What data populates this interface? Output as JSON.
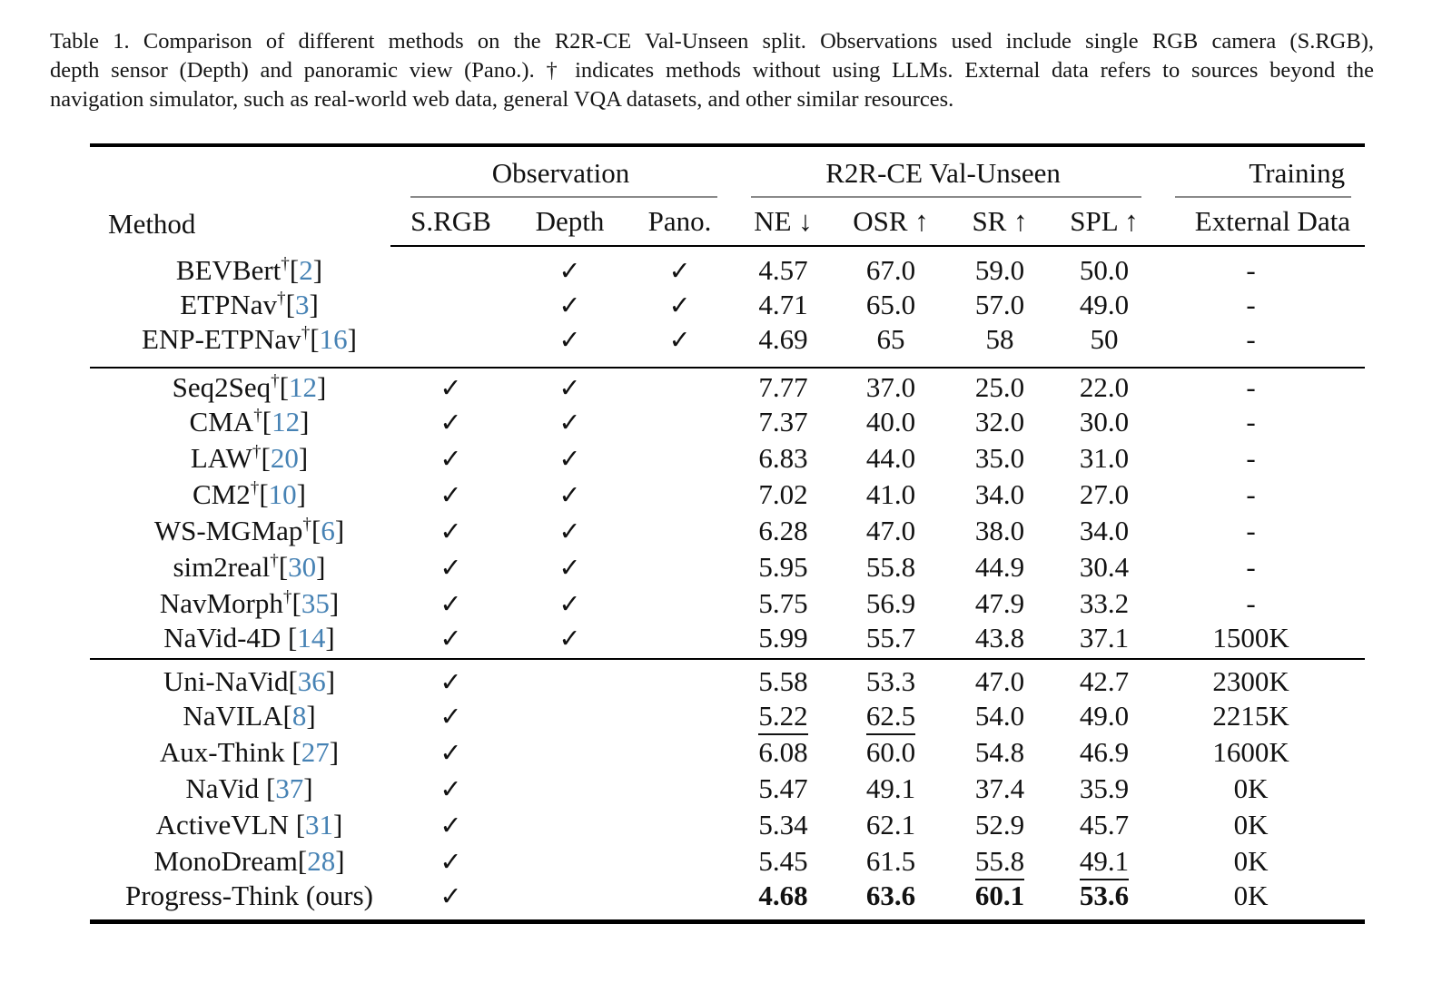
{
  "caption": {
    "lines": [
      "Table 1.  Comparison of different methods on the R2R-CE Val-Unseen split.  Observations used include single RGB camera (S.RGB),",
      "depth sensor (Depth) and panoramic view (Pano.). † indicates methods without using LLMs. External data refers to sources beyond the",
      "navigation simulator, such as real-world web data, general VQA datasets, and other similar resources."
    ]
  },
  "colors": {
    "citation_blue": "#4682b4",
    "text": "#121212",
    "rule": "#000000"
  },
  "glyphs": {
    "check": "✓",
    "dagger": "†",
    "open_bracket": "[",
    "close_bracket": "]"
  },
  "table": {
    "header": {
      "method": "Method",
      "groups": [
        {
          "label": "Observation",
          "span": 3
        },
        {
          "label": "R2R-CE Val-Unseen",
          "span": 4
        },
        {
          "label": "Training",
          "span": 1
        }
      ],
      "subs": [
        "S.RGB",
        "Depth",
        "Pano.",
        "NE ↓",
        "OSR ↑",
        "SR ↑",
        "SPL ↑",
        "External Data"
      ]
    },
    "groups": [
      {
        "rows": [
          {
            "method": "BEVBert",
            "dagger": true,
            "cite": "2",
            "space_before_cite": false,
            "srgb": false,
            "depth": true,
            "pano": true,
            "values": {
              "ne": "4.57",
              "osr": "67.0",
              "sr": "59.0",
              "spl": "50.0",
              "ext": "-"
            },
            "underline": [],
            "bold": []
          },
          {
            "method": "ETPNav",
            "dagger": true,
            "cite": "3",
            "space_before_cite": false,
            "srgb": false,
            "depth": true,
            "pano": true,
            "values": {
              "ne": "4.71",
              "osr": "65.0",
              "sr": "57.0",
              "spl": "49.0",
              "ext": "-"
            },
            "underline": [],
            "bold": []
          },
          {
            "method": "ENP-ETPNav",
            "dagger": true,
            "cite": "16",
            "space_before_cite": false,
            "srgb": false,
            "depth": true,
            "pano": true,
            "values": {
              "ne": "4.69",
              "osr": "65",
              "sr": "58",
              "spl": "50",
              "ext": "-"
            },
            "underline": [],
            "bold": []
          }
        ]
      },
      {
        "rows": [
          {
            "method": "Seq2Seq",
            "dagger": true,
            "cite": "12",
            "space_before_cite": false,
            "srgb": true,
            "depth": true,
            "pano": false,
            "values": {
              "ne": "7.77",
              "osr": "37.0",
              "sr": "25.0",
              "spl": "22.0",
              "ext": "-"
            },
            "underline": [],
            "bold": []
          },
          {
            "method": "CMA",
            "dagger": true,
            "cite": "12",
            "space_before_cite": false,
            "srgb": true,
            "depth": true,
            "pano": false,
            "values": {
              "ne": "7.37",
              "osr": "40.0",
              "sr": "32.0",
              "spl": "30.0",
              "ext": "-"
            },
            "underline": [],
            "bold": []
          },
          {
            "method": "LAW",
            "dagger": true,
            "cite": "20",
            "space_before_cite": false,
            "srgb": true,
            "depth": true,
            "pano": false,
            "values": {
              "ne": "6.83",
              "osr": "44.0",
              "sr": "35.0",
              "spl": "31.0",
              "ext": "-"
            },
            "underline": [],
            "bold": []
          },
          {
            "method": "CM2",
            "dagger": true,
            "cite": "10",
            "space_before_cite": false,
            "srgb": true,
            "depth": true,
            "pano": false,
            "values": {
              "ne": "7.02",
              "osr": "41.0",
              "sr": "34.0",
              "spl": "27.0",
              "ext": "-"
            },
            "underline": [],
            "bold": []
          },
          {
            "method": "WS-MGMap",
            "dagger": true,
            "cite": "6",
            "space_before_cite": false,
            "srgb": true,
            "depth": true,
            "pano": false,
            "values": {
              "ne": "6.28",
              "osr": "47.0",
              "sr": "38.0",
              "spl": "34.0",
              "ext": "-"
            },
            "underline": [],
            "bold": []
          },
          {
            "method": "sim2real",
            "dagger": true,
            "cite": "30",
            "space_before_cite": false,
            "srgb": true,
            "depth": true,
            "pano": false,
            "values": {
              "ne": "5.95",
              "osr": "55.8",
              "sr": "44.9",
              "spl": "30.4",
              "ext": "-"
            },
            "underline": [],
            "bold": []
          },
          {
            "method": "NavMorph",
            "dagger": true,
            "cite": "35",
            "space_before_cite": false,
            "srgb": true,
            "depth": true,
            "pano": false,
            "values": {
              "ne": "5.75",
              "osr": "56.9",
              "sr": "47.9",
              "spl": "33.2",
              "ext": "-"
            },
            "underline": [],
            "bold": []
          },
          {
            "method": "NaVid-4D",
            "dagger": false,
            "cite": "14",
            "space_before_cite": true,
            "srgb": true,
            "depth": true,
            "pano": false,
            "values": {
              "ne": "5.99",
              "osr": "55.7",
              "sr": "43.8",
              "spl": "37.1",
              "ext": "1500K"
            },
            "underline": [],
            "bold": []
          }
        ]
      },
      {
        "rows": [
          {
            "method": "Uni-NaVid",
            "dagger": false,
            "cite": "36",
            "space_before_cite": false,
            "srgb": true,
            "depth": false,
            "pano": false,
            "values": {
              "ne": "5.58",
              "osr": "53.3",
              "sr": "47.0",
              "spl": "42.7",
              "ext": "2300K"
            },
            "underline": [],
            "bold": []
          },
          {
            "method": "NaVILA",
            "dagger": false,
            "cite": "8",
            "space_before_cite": false,
            "srgb": true,
            "depth": false,
            "pano": false,
            "values": {
              "ne": "5.22",
              "osr": "62.5",
              "sr": "54.0",
              "spl": "49.0",
              "ext": "2215K"
            },
            "underline": [
              "ne",
              "osr"
            ],
            "bold": []
          },
          {
            "method": "Aux-Think",
            "dagger": false,
            "cite": "27",
            "space_before_cite": true,
            "srgb": true,
            "depth": false,
            "pano": false,
            "values": {
              "ne": "6.08",
              "osr": "60.0",
              "sr": "54.8",
              "spl": "46.9",
              "ext": "1600K"
            },
            "underline": [],
            "bold": []
          },
          {
            "method": "NaVid",
            "dagger": false,
            "cite": "37",
            "space_before_cite": true,
            "srgb": true,
            "depth": false,
            "pano": false,
            "values": {
              "ne": "5.47",
              "osr": "49.1",
              "sr": "37.4",
              "spl": "35.9",
              "ext": "0K"
            },
            "underline": [],
            "bold": []
          },
          {
            "method": "ActiveVLN",
            "dagger": false,
            "cite": "31",
            "space_before_cite": true,
            "srgb": true,
            "depth": false,
            "pano": false,
            "values": {
              "ne": "5.34",
              "osr": "62.1",
              "sr": "52.9",
              "spl": "45.7",
              "ext": "0K"
            },
            "underline": [],
            "bold": []
          },
          {
            "method": "MonoDream",
            "dagger": false,
            "cite": "28",
            "space_before_cite": false,
            "srgb": true,
            "depth": false,
            "pano": false,
            "values": {
              "ne": "5.45",
              "osr": "61.5",
              "sr": "55.8",
              "spl": "49.1",
              "ext": "0K"
            },
            "underline": [
              "sr",
              "spl"
            ],
            "bold": []
          },
          {
            "method": "Progress-Think (ours)",
            "dagger": false,
            "cite": null,
            "space_before_cite": false,
            "srgb": true,
            "depth": false,
            "pano": false,
            "values": {
              "ne": "4.68",
              "osr": "63.6",
              "sr": "60.1",
              "spl": "53.6",
              "ext": "0K"
            },
            "underline": [],
            "bold": [
              "ne",
              "osr",
              "sr",
              "spl"
            ]
          }
        ]
      }
    ]
  }
}
